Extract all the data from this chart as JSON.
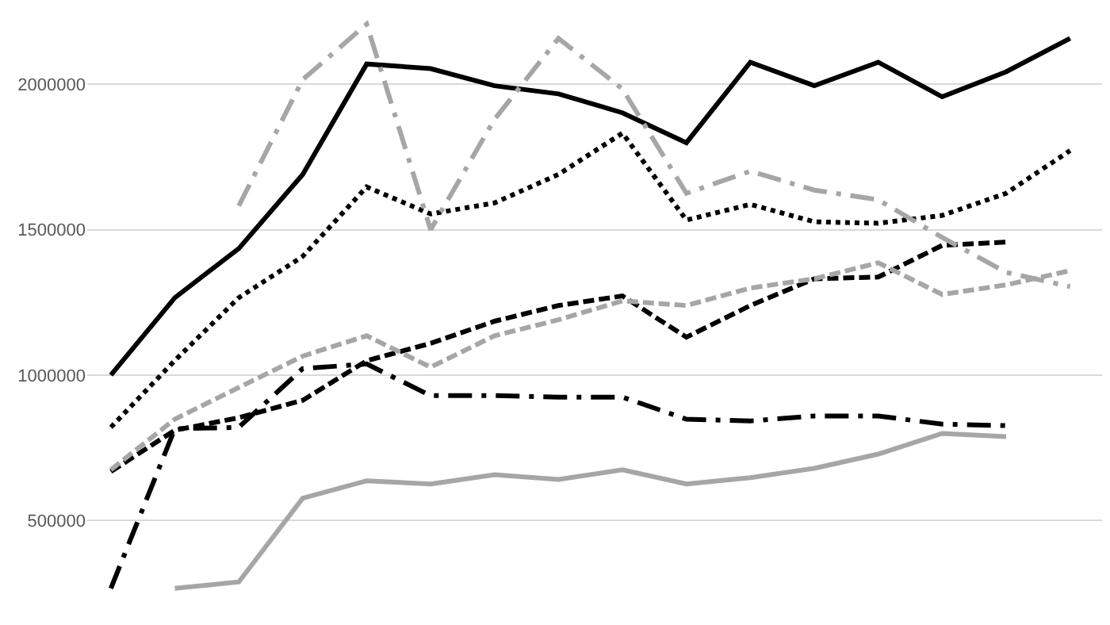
{
  "chart_data": {
    "type": "line",
    "categories": [
      null,
      null,
      null,
      null,
      null,
      null,
      null,
      null,
      null,
      null,
      null,
      null,
      null,
      null,
      null,
      null
    ],
    "ylim": [
      140000,
      2290000
    ],
    "yticks": [
      500000,
      1000000,
      1500000,
      2000000
    ],
    "grid": "y",
    "marker": "none",
    "tick_labels": "y",
    "series": [
      {
        "color": "#000000",
        "line_style": "solid",
        "values": [
          1000000,
          1266000,
          1435000,
          1690000,
          2070000,
          2054000,
          1995000,
          1967000,
          1902000,
          1799000,
          2076000,
          1995000,
          2076000,
          1957000,
          2043000,
          2158000
        ]
      },
      {
        "color": "#000000",
        "line_style": "dotted",
        "values": [
          820000,
          1050000,
          1266000,
          1408000,
          1647000,
          1554000,
          1592000,
          1690000,
          1832000,
          1533000,
          1587000,
          1527000,
          1522000,
          1549000,
          1625000,
          1772000
        ]
      },
      {
        "color": "#000000",
        "line_style": "dashed",
        "values": [
          668000,
          810000,
          853000,
          913000,
          1049000,
          1109000,
          1185000,
          1239000,
          1272000,
          1130000,
          1239000,
          1331000,
          1337000,
          1446000,
          1457000,
          null
        ]
      },
      {
        "color": "#000000",
        "line_style": "dashdot",
        "values": [
          266000,
          815000,
          820000,
          1022000,
          1038000,
          929000,
          929000,
          924000,
          924000,
          848000,
          842000,
          859000,
          859000,
          831000,
          826000,
          null
        ]
      },
      {
        "color": "#a6a6a6",
        "line_style": "solid",
        "values": [
          null,
          266000,
          288000,
          576000,
          636000,
          625000,
          657000,
          641000,
          674000,
          625000,
          647000,
          679000,
          728000,
          799000,
          788000,
          null
        ]
      },
      {
        "color": "#a6a6a6",
        "line_style": "dashdot",
        "values": [
          null,
          null,
          1582000,
          2016000,
          2207000,
          1500000,
          1880000,
          2158000,
          1984000,
          1625000,
          1701000,
          1636000,
          1603000,
          1473000,
          1353000,
          1304000
        ]
      },
      {
        "color": "#a6a6a6",
        "line_style": "dashed",
        "values": [
          674000,
          848000,
          957000,
          1065000,
          1135000,
          1027000,
          1135000,
          1190000,
          1255000,
          1239000,
          1299000,
          1331000,
          1386000,
          1277000,
          1310000,
          1359000
        ]
      }
    ]
  }
}
